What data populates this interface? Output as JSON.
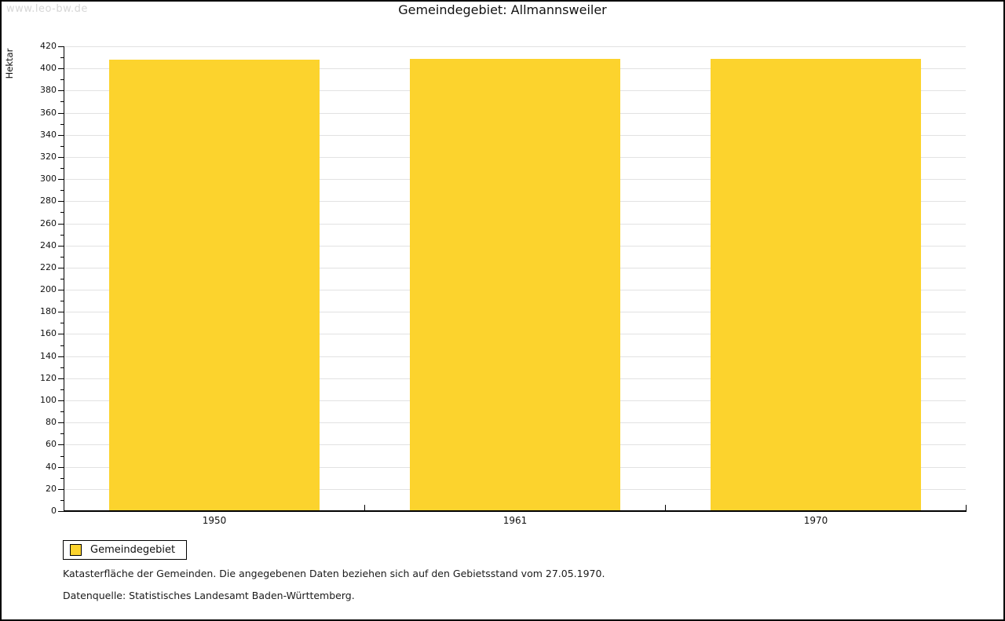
{
  "watermark": "www.leo-bw.de",
  "chart_data": {
    "type": "bar",
    "title": "Gemeindegebiet: Allmannsweiler",
    "xlabel": "",
    "ylabel": "Hektar",
    "categories": [
      "1950",
      "1961",
      "1970"
    ],
    "series": [
      {
        "name": "Gemeindegebiet",
        "values": [
          408,
          409,
          409
        ]
      }
    ],
    "ylim": [
      0,
      420
    ],
    "ytick_step": 20,
    "yminor_step": 10,
    "yticks": [
      0,
      20,
      40,
      60,
      80,
      100,
      120,
      140,
      160,
      180,
      200,
      220,
      240,
      260,
      280,
      300,
      320,
      340,
      360,
      380,
      400,
      420
    ],
    "grid": "horizontal-major",
    "bar_color": "#fcd32d",
    "gridline_color": "#e2e2e2",
    "legend_position": "bottom-left"
  },
  "legend": {
    "items": [
      {
        "label": "Gemeindegebiet",
        "color": "#fcd32d"
      }
    ]
  },
  "footnotes": [
    "Katasterfläche der Gemeinden. Die angegebenen Daten beziehen sich auf den Gebietsstand vom 27.05.1970.",
    "Datenquelle: Statistisches Landesamt Baden-Württemberg."
  ]
}
